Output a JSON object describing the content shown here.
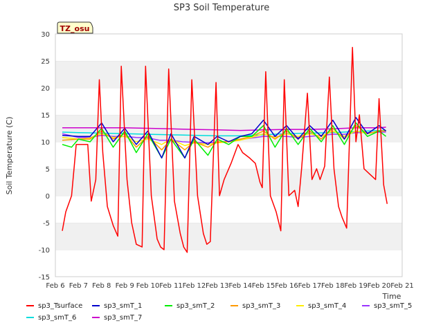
{
  "chart_data": {
    "type": "line",
    "title": "SP3 Soil Temperature",
    "xlabel": "Time",
    "ylabel": "Soil Temperature (C)",
    "ylim": [
      -15,
      30
    ],
    "xlim": [
      6,
      21
    ],
    "yticks": [
      -15,
      -10,
      -5,
      0,
      5,
      10,
      15,
      20,
      25,
      30
    ],
    "xtick_labels": [
      "Feb 6",
      "Feb 7",
      "Feb 8",
      "Feb 9",
      "Feb 10",
      "Feb 11",
      "Feb 12",
      "Feb 13",
      "Feb 14",
      "Feb 15",
      "Feb 16",
      "Feb 17",
      "Feb 18",
      "Feb 19",
      "Feb 20",
      "Feb 21"
    ],
    "site_label": "TZ_osu",
    "grid": "horizontal bands",
    "legend_position": "bottom",
    "series": [
      {
        "name": "sp3_Tsurface",
        "color": "#ff0000",
        "x": [
          6.3,
          6.45,
          6.7,
          6.9,
          7.2,
          7.4,
          7.55,
          7.75,
          7.9,
          8.05,
          8.25,
          8.5,
          8.7,
          8.85,
          9.1,
          9.3,
          9.5,
          9.75,
          9.9,
          10.15,
          10.4,
          10.55,
          10.7,
          10.9,
          11.15,
          11.4,
          11.55,
          11.7,
          11.9,
          12.15,
          12.4,
          12.55,
          12.7,
          12.95,
          13.1,
          13.3,
          13.6,
          13.9,
          14.1,
          14.4,
          14.65,
          14.85,
          14.95,
          15.1,
          15.3,
          15.55,
          15.75,
          15.9,
          16.1,
          16.35,
          16.5,
          16.65,
          16.9,
          17.1,
          17.3,
          17.45,
          17.65,
          17.85,
          18.05,
          18.25,
          18.4,
          18.6,
          18.85,
          19.0,
          19.15,
          19.35,
          19.6,
          19.85,
          20.0,
          20.2,
          20.35
        ],
        "values": [
          -6.5,
          -3,
          0,
          9.5,
          9.5,
          9.5,
          -1,
          3,
          21.5,
          8,
          -2,
          -5.5,
          -7.5,
          24,
          3,
          -5,
          -9,
          -9.5,
          24,
          0,
          -8,
          -9.5,
          -10,
          23.5,
          -1,
          -7,
          -9.5,
          -10.5,
          21.5,
          0,
          -7,
          -9,
          -8.5,
          21,
          0,
          3,
          6,
          9.5,
          8,
          7,
          6,
          2.5,
          1.5,
          23,
          0,
          -3,
          -6.5,
          21.5,
          0,
          1,
          -2,
          5,
          19,
          3,
          5,
          3,
          5.5,
          22,
          5,
          -2,
          -4,
          -6,
          27.5,
          10,
          15,
          5,
          4,
          3,
          18,
          2,
          -1.5
        ]
      },
      {
        "name": "sp3_smT_1",
        "color": "#0000cc",
        "x": [
          6.3,
          7.0,
          7.5,
          8.0,
          8.5,
          9.0,
          9.5,
          10.0,
          10.6,
          11.0,
          11.6,
          12.0,
          12.6,
          13.0,
          13.5,
          14.0,
          14.5,
          15.0,
          15.5,
          16.0,
          16.5,
          17.0,
          17.5,
          18.0,
          18.5,
          19.0,
          19.5,
          20.0,
          20.3
        ],
        "values": [
          11.2,
          11,
          11,
          13.5,
          10,
          12.5,
          9.5,
          12,
          7,
          11.5,
          7,
          11,
          9.5,
          11,
          10,
          11,
          11.5,
          14,
          11,
          13,
          10.5,
          13,
          11,
          14,
          10.5,
          14.5,
          11.5,
          13,
          12
        ]
      },
      {
        "name": "sp3_smT_2",
        "color": "#00ee00",
        "x": [
          6.3,
          6.7,
          7.0,
          7.5,
          8.0,
          8.5,
          9.0,
          9.5,
          10.0,
          10.6,
          11.0,
          11.6,
          12.0,
          12.6,
          13.0,
          13.5,
          14.0,
          14.5,
          15.0,
          15.5,
          16.0,
          16.5,
          17.0,
          17.5,
          18.0,
          18.5,
          19.0,
          19.5,
          20.0,
          20.3
        ],
        "values": [
          9.5,
          9.0,
          10.5,
          10,
          12.5,
          9,
          12,
          8,
          11.5,
          7,
          10.5,
          7,
          10.5,
          7.5,
          10.5,
          9.5,
          11,
          11,
          13,
          9,
          12.5,
          9.5,
          12.5,
          10,
          13,
          9.5,
          13.5,
          11,
          12,
          11
        ]
      },
      {
        "name": "sp3_smT_3",
        "color": "#ff9900",
        "x": [
          6.3,
          7.0,
          7.5,
          8.0,
          8.5,
          9.0,
          9.5,
          10.0,
          10.6,
          11.0,
          11.6,
          12.0,
          12.6,
          13.0,
          13.5,
          14.0,
          14.5,
          15.0,
          15.5,
          16.0,
          16.5,
          17.0,
          17.5,
          18.0,
          18.5,
          19.0,
          19.5,
          20.0,
          20.3
        ],
        "values": [
          10.3,
          10.5,
          10.5,
          12,
          10.5,
          11.5,
          9,
          11,
          8.5,
          10.5,
          8.5,
          10,
          9,
          10,
          10,
          10.5,
          11,
          12,
          10.5,
          12,
          10.5,
          12,
          10.5,
          12.5,
          10.5,
          13,
          11.5,
          12,
          12
        ]
      },
      {
        "name": "sp3_smT_4",
        "color": "#ffee00",
        "x": [
          6.3,
          7.0,
          7.5,
          8.0,
          8.5,
          9.0,
          9.5,
          10.0,
          10.6,
          11.0,
          11.6,
          12.0,
          12.6,
          13.0,
          13.5,
          14.0,
          14.5,
          15.0,
          15.5,
          16.0,
          16.5,
          17.0,
          17.5,
          18.0,
          18.5,
          19.0,
          19.5,
          20.0,
          20.3
        ],
        "values": [
          10.8,
          10.5,
          10.7,
          11.5,
          10.8,
          11,
          10,
          10.5,
          9.5,
          10.5,
          9.3,
          9.8,
          9.5,
          9.8,
          10,
          10.3,
          10.8,
          11.5,
          10.8,
          11.5,
          11,
          11.5,
          11,
          12,
          11,
          12,
          11.5,
          12,
          12
        ]
      },
      {
        "name": "sp3_smT_5",
        "color": "#9933ff",
        "x": [
          6.3,
          7.0,
          7.5,
          8.0,
          8.5,
          9.0,
          9.5,
          10.0,
          10.5,
          11.0,
          11.5,
          12.0,
          12.5,
          13.0,
          13.5,
          14.0,
          14.5,
          15.0,
          15.5,
          16.0,
          16.5,
          17.0,
          17.5,
          18.0,
          18.5,
          19.0,
          19.5,
          20.0,
          20.3
        ],
        "values": [
          11.5,
          10.8,
          10.8,
          11.2,
          11,
          11,
          10.8,
          10.7,
          10.3,
          10.3,
          10,
          9.9,
          9.8,
          9.9,
          10.1,
          10.4,
          10.7,
          11,
          11,
          11,
          10.8,
          11,
          11.2,
          11.4,
          11.4,
          11.7,
          11.7,
          11.8,
          11.8
        ]
      },
      {
        "name": "sp3_smT_6",
        "color": "#00dddd",
        "x": [
          6.3,
          7.0,
          8.0,
          9.0,
          10.0,
          11.0,
          12.0,
          13.0,
          14.0,
          15.0,
          16.0,
          17.0,
          18.0,
          19.0,
          20.0,
          20.3
        ],
        "values": [
          11.8,
          11.7,
          11.6,
          11.5,
          11.4,
          11.3,
          11.2,
          11.1,
          11.1,
          11.3,
          11.5,
          11.6,
          11.7,
          11.9,
          12.1,
          12.1
        ]
      },
      {
        "name": "sp3_smT_7",
        "color": "#cc00cc",
        "x": [
          6.3,
          7.0,
          8.0,
          9.0,
          10.0,
          11.0,
          12.0,
          13.0,
          14.0,
          15.0,
          16.0,
          17.0,
          18.0,
          19.0,
          20.0,
          20.3
        ],
        "values": [
          12.6,
          12.6,
          12.6,
          12.6,
          12.5,
          12.4,
          12.3,
          12.2,
          12.1,
          12.2,
          12.3,
          12.3,
          12.4,
          12.6,
          12.6,
          12.7
        ]
      }
    ]
  }
}
